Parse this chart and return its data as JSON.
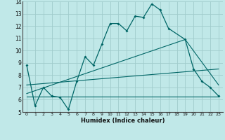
{
  "title": "",
  "xlabel": "Humidex (Indice chaleur)",
  "bg_color": "#c0e8e8",
  "grid_color": "#a0cccc",
  "line_color": "#006666",
  "xlim": [
    -0.5,
    23.5
  ],
  "ylim": [
    5,
    14
  ],
  "xticks": [
    0,
    1,
    2,
    3,
    4,
    5,
    6,
    7,
    8,
    9,
    10,
    11,
    12,
    13,
    14,
    15,
    16,
    17,
    18,
    19,
    20,
    21,
    22,
    23
  ],
  "yticks": [
    5,
    6,
    7,
    8,
    9,
    10,
    11,
    12,
    13,
    14
  ],
  "series1_x": [
    0,
    1,
    2,
    3,
    4,
    5,
    6,
    7,
    8,
    9,
    10,
    11,
    12,
    13,
    14,
    15,
    16,
    17,
    19,
    20,
    21,
    22,
    23
  ],
  "series1_y": [
    8.8,
    5.5,
    7.0,
    6.3,
    6.2,
    5.2,
    7.5,
    9.5,
    8.8,
    10.5,
    12.2,
    12.2,
    11.6,
    12.8,
    12.7,
    13.8,
    13.3,
    11.8,
    10.9,
    8.5,
    7.5,
    7.0,
    6.3
  ],
  "series2_x": [
    0,
    23
  ],
  "series2_y": [
    6.25,
    6.25
  ],
  "series3_x": [
    0,
    19,
    23
  ],
  "series3_y": [
    6.5,
    10.9,
    7.2
  ],
  "series4_x": [
    0,
    23
  ],
  "series4_y": [
    7.2,
    8.5
  ]
}
